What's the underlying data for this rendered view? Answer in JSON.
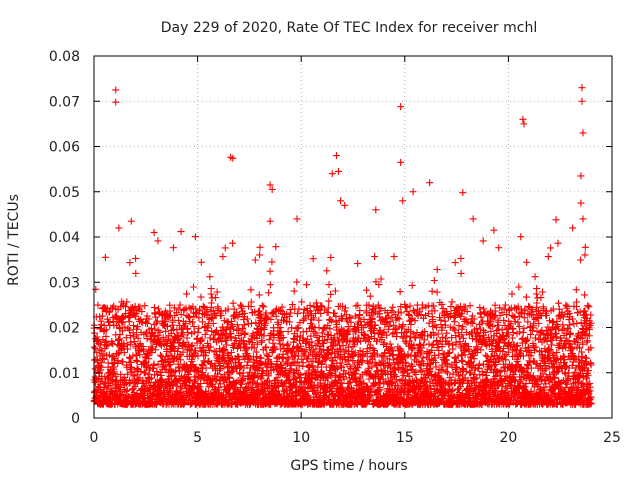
{
  "chart_data": {
    "type": "scatter",
    "title": "Day 229 of 2020, Rate Of TEC Index for receiver mchl",
    "xlabel": "GPS time / hours",
    "ylabel": "ROTI / TECUs",
    "xlim": [
      0,
      25
    ],
    "ylim": [
      0,
      0.08
    ],
    "x_ticks": [
      0,
      5,
      10,
      15,
      20,
      25
    ],
    "y_ticks": [
      0,
      0.01,
      0.02,
      0.03,
      0.04,
      0.05,
      0.06,
      0.07,
      0.08
    ],
    "x_tick_labels": [
      "0",
      "5",
      "10",
      "15",
      "20",
      "25"
    ],
    "y_tick_labels": [
      "0",
      "0.01",
      "0.02",
      "0.03",
      "0.04",
      "0.05",
      "0.06",
      "0.07",
      "0.08"
    ],
    "grid": true,
    "marker": "plus",
    "color": "#ff0000",
    "series": [
      {
        "name": "ROTI",
        "x_range": [
          0,
          24
        ],
        "baseline_range": [
          0.003,
          0.025
        ],
        "notable_points": [
          [
            1.05,
            0.0725
          ],
          [
            1.05,
            0.0698
          ],
          [
            1.2,
            0.042
          ],
          [
            1.8,
            0.0435
          ],
          [
            2.9,
            0.041
          ],
          [
            4.2,
            0.0412
          ],
          [
            6.6,
            0.0576
          ],
          [
            6.7,
            0.0574
          ],
          [
            8.5,
            0.0515
          ],
          [
            8.6,
            0.0505
          ],
          [
            8.5,
            0.0435
          ],
          [
            9.8,
            0.044
          ],
          [
            11.5,
            0.054
          ],
          [
            11.7,
            0.058
          ],
          [
            11.8,
            0.0545
          ],
          [
            11.9,
            0.048
          ],
          [
            12.1,
            0.047
          ],
          [
            13.6,
            0.046
          ],
          [
            14.8,
            0.0688
          ],
          [
            14.8,
            0.0565
          ],
          [
            14.9,
            0.048
          ],
          [
            15.4,
            0.05
          ],
          [
            16.2,
            0.052
          ],
          [
            17.8,
            0.0498
          ],
          [
            18.3,
            0.044
          ],
          [
            19.3,
            0.0415
          ],
          [
            20.7,
            0.066
          ],
          [
            20.75,
            0.065
          ],
          [
            22.3,
            0.0438
          ],
          [
            23.1,
            0.042
          ],
          [
            23.5,
            0.0535
          ],
          [
            23.5,
            0.0475
          ],
          [
            23.55,
            0.073
          ],
          [
            23.55,
            0.07
          ],
          [
            23.6,
            0.063
          ],
          [
            23.6,
            0.044
          ]
        ]
      }
    ]
  }
}
